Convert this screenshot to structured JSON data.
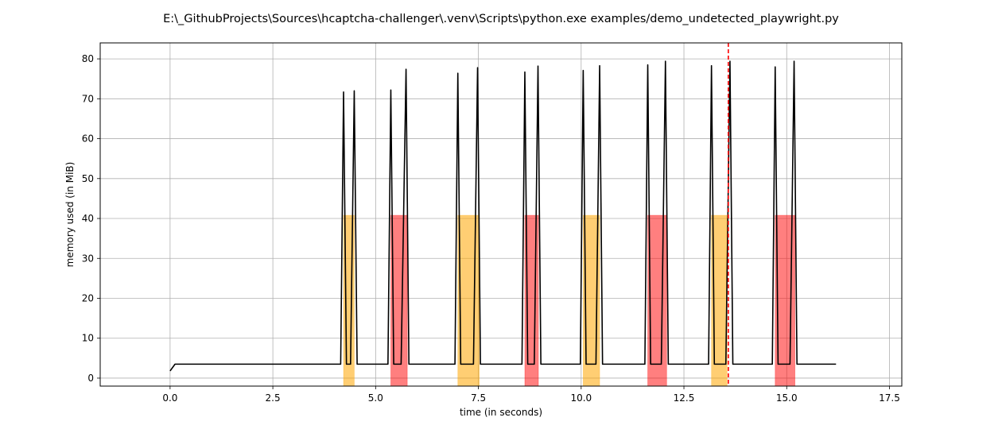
{
  "chart_data": {
    "type": "line",
    "title": "E:\\_GithubProjects\\Sources\\hcaptcha-challenger\\.venv\\Scripts\\python.exe examples/demo_undetected_playwright.py",
    "xlabel": "time (in seconds)",
    "ylabel": "memory used (in MiB)",
    "xlim": [
      -1.7,
      17.8
    ],
    "ylim": [
      -2,
      84
    ],
    "grid": true,
    "xticks": [
      0.0,
      2.5,
      5.0,
      7.5,
      10.0,
      12.5,
      15.0,
      17.5
    ],
    "xtick_labels": [
      "0.0",
      "2.5",
      "5.0",
      "7.5",
      "10.0",
      "12.5",
      "15.0",
      "17.5"
    ],
    "yticks": [
      0,
      10,
      20,
      30,
      40,
      50,
      60,
      70,
      80
    ],
    "ytick_labels": [
      "0",
      "10",
      "20",
      "30",
      "40",
      "50",
      "60",
      "70",
      "80"
    ],
    "series": [
      {
        "color": "#000000",
        "x": [
          0.0,
          0.12,
          4.15,
          4.22,
          4.29,
          4.39,
          4.48,
          4.55,
          5.3,
          5.37,
          5.44,
          5.62,
          5.74,
          5.81,
          6.93,
          7.0,
          7.07,
          7.38,
          7.48,
          7.55,
          8.56,
          8.63,
          8.7,
          8.86,
          8.95,
          9.02,
          9.98,
          10.05,
          10.12,
          10.36,
          10.45,
          10.52,
          11.55,
          11.62,
          11.69,
          11.95,
          12.05,
          12.12,
          13.1,
          13.17,
          13.24,
          13.52,
          13.62,
          13.69,
          14.65,
          14.72,
          14.79,
          15.08,
          15.18,
          15.25,
          16.2
        ],
        "y": [
          1.8,
          3.5,
          3.5,
          71.7,
          3.5,
          3.5,
          72.0,
          3.5,
          3.5,
          72.2,
          3.5,
          3.5,
          77.4,
          3.5,
          3.5,
          76.4,
          3.5,
          3.5,
          77.8,
          3.5,
          3.5,
          76.7,
          3.5,
          3.5,
          78.2,
          3.5,
          3.5,
          77.1,
          3.5,
          3.5,
          78.3,
          3.5,
          3.5,
          78.5,
          3.5,
          3.5,
          79.4,
          3.5,
          3.5,
          78.3,
          3.5,
          3.5,
          79.4,
          3.5,
          3.5,
          78.0,
          3.5,
          3.5,
          79.4,
          3.5,
          3.5
        ]
      }
    ],
    "spans": [
      {
        "x0": 4.22,
        "x1": 4.48,
        "y0": -2,
        "y1": 40.8,
        "color": "#ffa500",
        "alpha": 0.55
      },
      {
        "x0": 5.37,
        "x1": 5.77,
        "y0": -2,
        "y1": 40.8,
        "color": "#ff0000",
        "alpha": 0.5
      },
      {
        "x0": 7.0,
        "x1": 7.52,
        "y0": -2,
        "y1": 40.8,
        "color": "#ffa500",
        "alpha": 0.55
      },
      {
        "x0": 8.63,
        "x1": 8.96,
        "y0": -2,
        "y1": 40.8,
        "color": "#ff0000",
        "alpha": 0.5
      },
      {
        "x0": 10.05,
        "x1": 10.45,
        "y0": -2,
        "y1": 40.8,
        "color": "#ffa500",
        "alpha": 0.55
      },
      {
        "x0": 11.62,
        "x1": 12.08,
        "y0": -2,
        "y1": 40.8,
        "color": "#ff0000",
        "alpha": 0.5
      },
      {
        "x0": 13.17,
        "x1": 13.55,
        "y0": -2,
        "y1": 40.8,
        "color": "#ffa500",
        "alpha": 0.55
      },
      {
        "x0": 14.72,
        "x1": 15.2,
        "y0": -2,
        "y1": 40.8,
        "color": "#ff0000",
        "alpha": 0.5
      }
    ],
    "vline": {
      "x": 13.58,
      "color": "#ff0000",
      "style": "dashed"
    }
  }
}
